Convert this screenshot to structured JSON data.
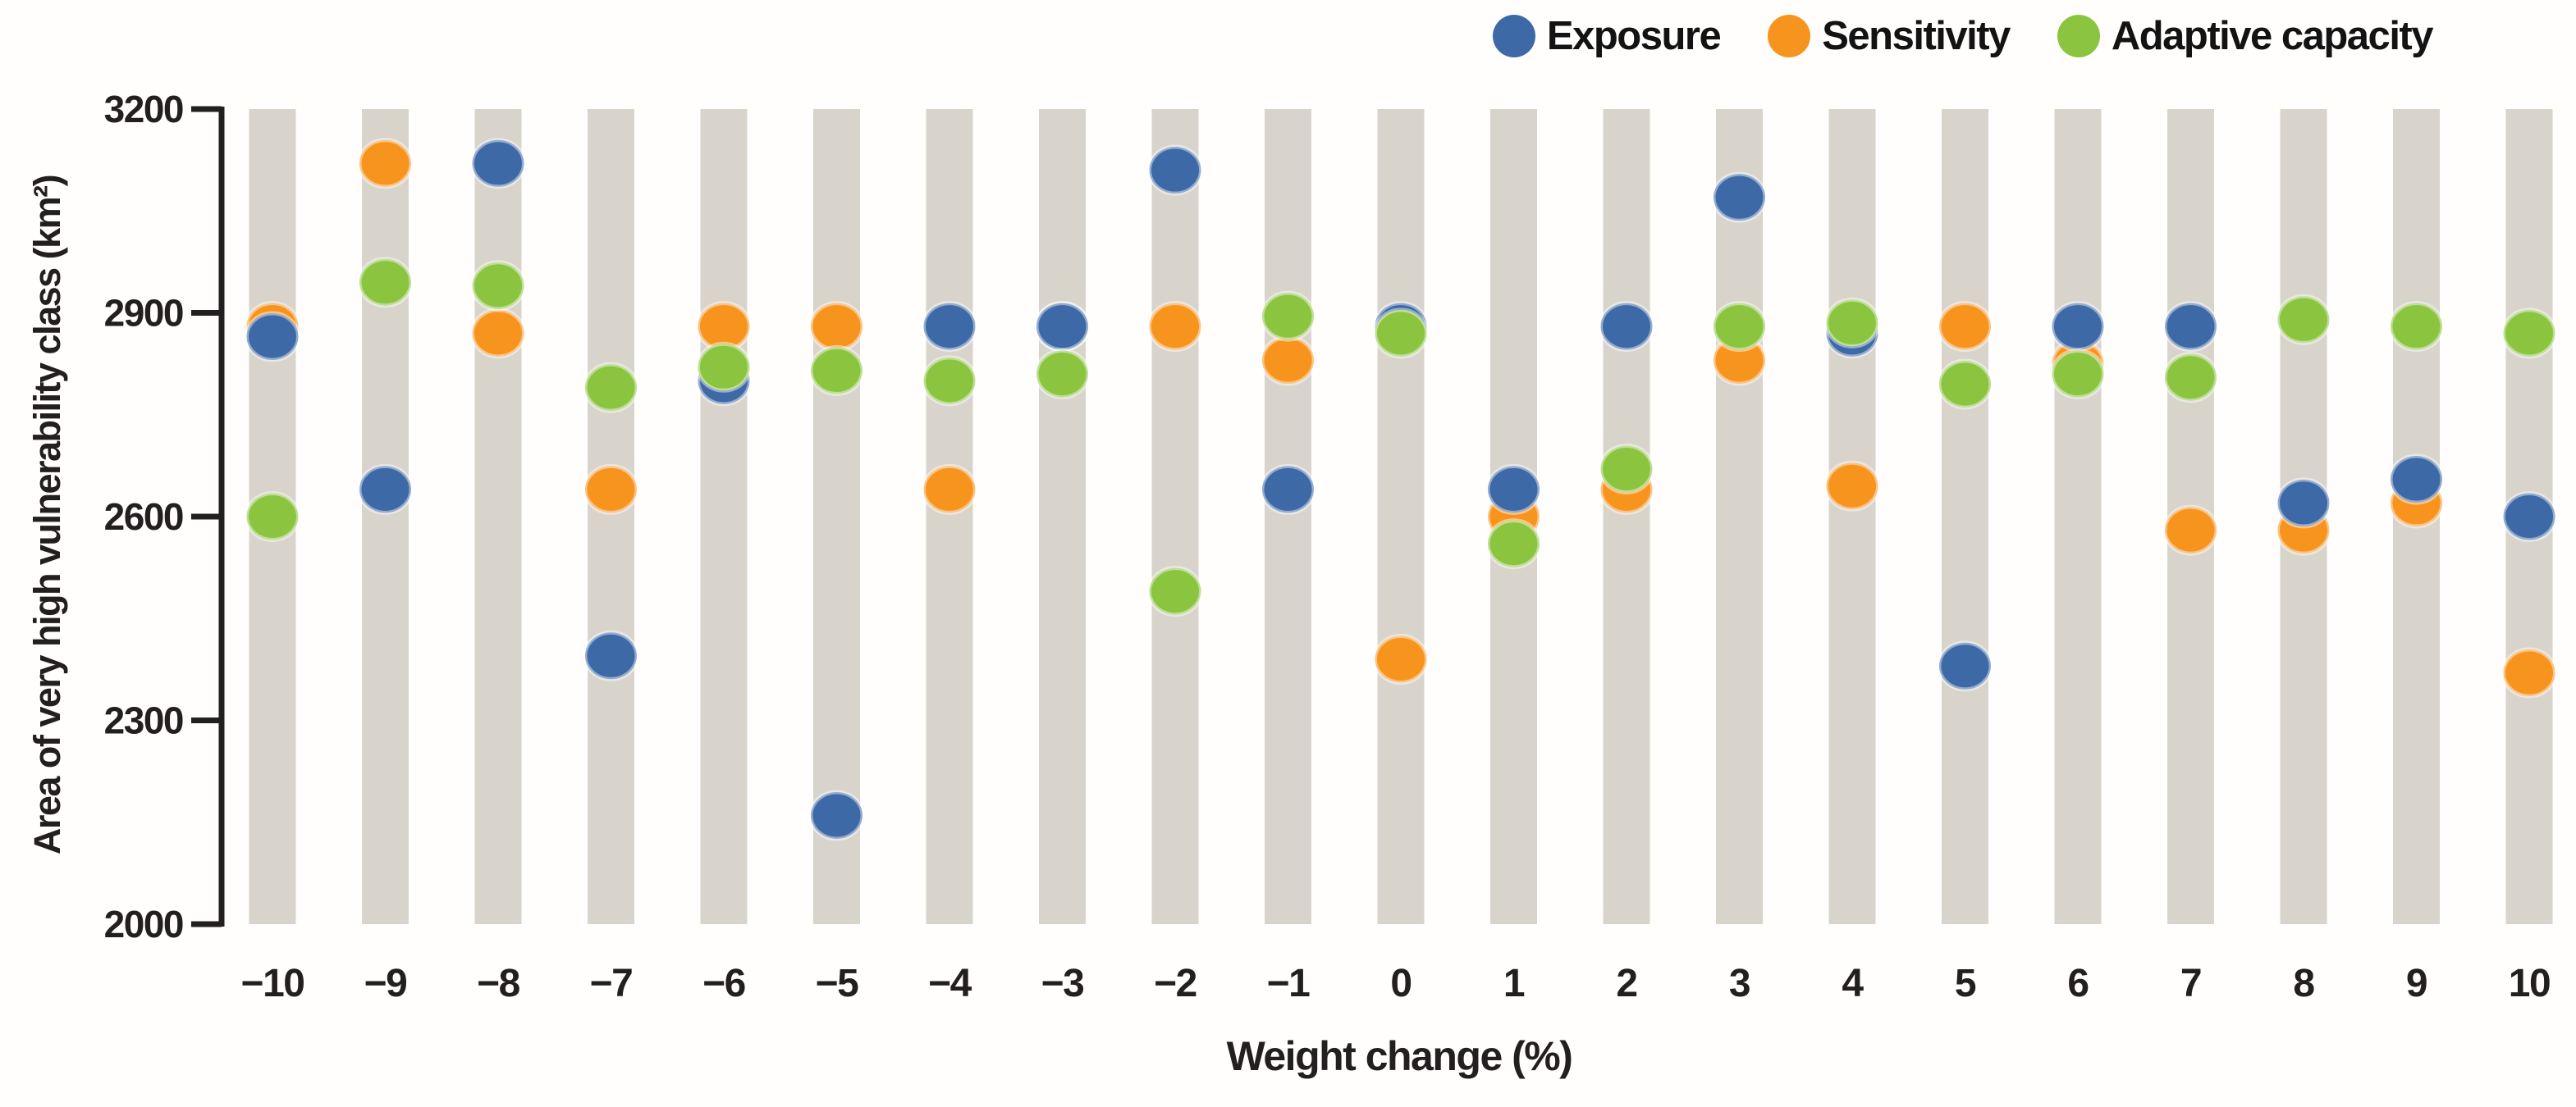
{
  "chart_data": {
    "type": "scatter",
    "title": "",
    "xlabel": "Weight change (%)",
    "ylabel": "Area of very high vulnerability class (km²)",
    "x_categories": [
      -10,
      -9,
      -8,
      -7,
      -6,
      -5,
      -4,
      -3,
      -2,
      -1,
      0,
      1,
      2,
      3,
      4,
      5,
      6,
      7,
      8,
      9,
      10
    ],
    "x_tick_labels": [
      "−10",
      "−9",
      "−8",
      "−7",
      "−6",
      "−5",
      "−4",
      "−3",
      "−2",
      "−1",
      "0",
      "1",
      "2",
      "3",
      "4",
      "5",
      "6",
      "7",
      "8",
      "9",
      "10"
    ],
    "y_ticks": [
      3200,
      2900,
      2600,
      2300,
      2000
    ],
    "ylim": [
      2000,
      3200
    ],
    "grid": false,
    "legend_position": "top-right",
    "background_bars": {
      "color": "#d8d4cc"
    },
    "axis_color": "#231f20",
    "series": [
      {
        "name": "Exposure",
        "color": "#3d69a7",
        "values": [
          2865,
          2640,
          3120,
          2395,
          2800,
          2160,
          2880,
          2880,
          3110,
          2640,
          2880,
          2640,
          2880,
          3070,
          2870,
          2380,
          2880,
          2880,
          2620,
          2655,
          2600
        ]
      },
      {
        "name": "Sensitivity",
        "color": "#f7941e",
        "values": [
          2880,
          3120,
          2870,
          2640,
          2880,
          2880,
          2640,
          2880,
          2880,
          2830,
          2390,
          2600,
          2640,
          2830,
          2645,
          2880,
          2825,
          2580,
          2580,
          2620,
          2370
        ]
      },
      {
        "name": "Adaptive capacity",
        "color": "#8bc53f",
        "values": [
          2600,
          2945,
          2940,
          2790,
          2820,
          2815,
          2800,
          2810,
          2490,
          2895,
          2870,
          2560,
          2670,
          2880,
          2885,
          2795,
          2810,
          2805,
          2890,
          2880,
          2870
        ]
      }
    ]
  }
}
